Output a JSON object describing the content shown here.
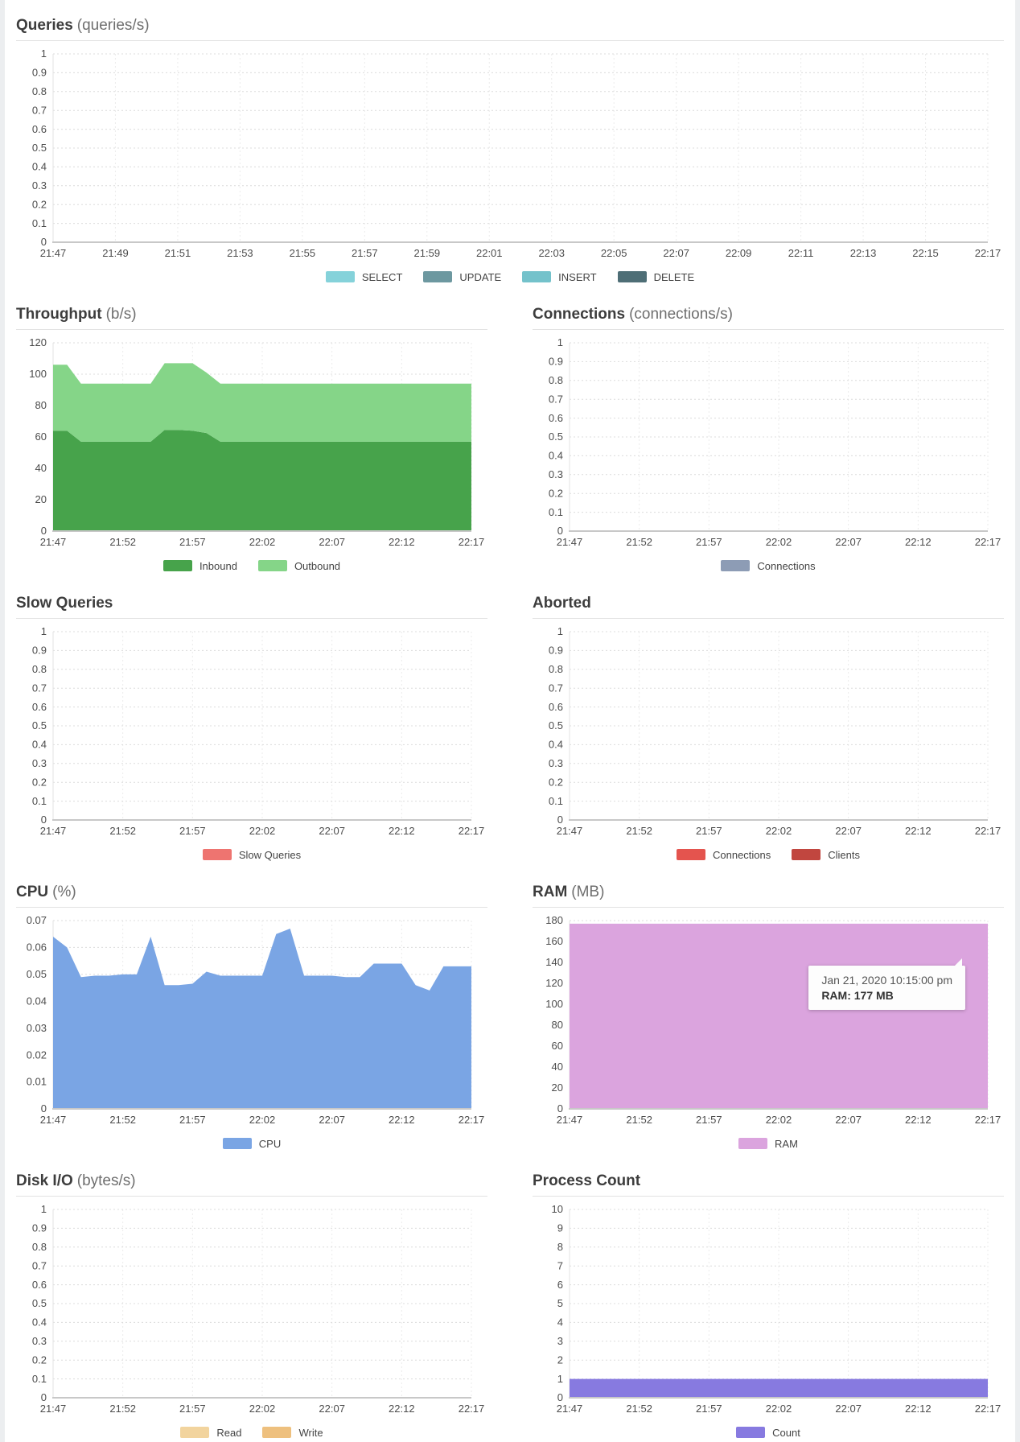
{
  "chart_data": [
    {
      "title": "Queries",
      "unit": "(queries/s)",
      "type": "line",
      "x_ticks": [
        "21:47",
        "21:49",
        "21:51",
        "21:53",
        "21:55",
        "21:57",
        "21:59",
        "22:01",
        "22:03",
        "22:05",
        "22:07",
        "22:09",
        "22:11",
        "22:13",
        "22:15",
        "22:17"
      ],
      "y_ticks_top_to_bottom": [
        "1",
        "0.9",
        "0.8",
        "0.7",
        "0.6",
        "0.5",
        "0.4",
        "0.3",
        "0.2",
        "0.1",
        "0"
      ],
      "y_min": 0,
      "y_max": 1,
      "grid": true,
      "legend_position": "bottom",
      "series": [
        {
          "name": "SELECT",
          "color": "#85d2da",
          "values": []
        },
        {
          "name": "UPDATE",
          "color": "#6d98a0",
          "values": []
        },
        {
          "name": "INSERT",
          "color": "#74c2cb",
          "values": []
        },
        {
          "name": "DELETE",
          "color": "#4e6e76",
          "values": []
        }
      ]
    },
    {
      "title": "Throughput",
      "unit": "(b/s)",
      "type": "stacked-area",
      "x_ticks": [
        "21:47",
        "21:52",
        "21:57",
        "22:02",
        "22:07",
        "22:12",
        "22:17"
      ],
      "y_ticks_top_to_bottom": [
        "120",
        "100",
        "80",
        "60",
        "40",
        "20",
        "0"
      ],
      "y_min": 0,
      "y_max": 120,
      "grid": true,
      "legend_position": "bottom",
      "points_interval_min": 1,
      "series": [
        {
          "name": "Inbound",
          "color": "#47a34b",
          "values": [
            64,
            64,
            57,
            57,
            57,
            57,
            57,
            57,
            64.5,
            64.5,
            64,
            62.5,
            57,
            57,
            57,
            57,
            57,
            57,
            57,
            57,
            57,
            57,
            57,
            57,
            57,
            57,
            57,
            57,
            57,
            57,
            57
          ]
        },
        {
          "name": "Outbound",
          "color": "#85d588",
          "values": [
            42,
            42,
            37,
            37,
            37,
            37,
            37,
            37,
            42.5,
            42.5,
            43,
            38.5,
            37,
            37,
            37,
            37,
            37,
            37,
            37,
            37,
            37,
            37,
            37,
            37,
            37,
            37,
            37,
            37,
            37,
            37,
            37
          ]
        }
      ]
    },
    {
      "title": "Connections",
      "unit": "(connections/s)",
      "type": "line",
      "x_ticks": [
        "21:47",
        "21:52",
        "21:57",
        "22:02",
        "22:07",
        "22:12",
        "22:17"
      ],
      "y_ticks_top_to_bottom": [
        "1",
        "0.9",
        "0.8",
        "0.7",
        "0.6",
        "0.5",
        "0.4",
        "0.3",
        "0.2",
        "0.1",
        "0"
      ],
      "y_min": 0,
      "y_max": 1,
      "grid": true,
      "legend_position": "bottom",
      "series": [
        {
          "name": "Connections",
          "color": "#8d9cb5",
          "values": []
        }
      ]
    },
    {
      "title": "Slow Queries",
      "unit": "",
      "type": "line",
      "x_ticks": [
        "21:47",
        "21:52",
        "21:57",
        "22:02",
        "22:07",
        "22:12",
        "22:17"
      ],
      "y_ticks_top_to_bottom": [
        "1",
        "0.9",
        "0.8",
        "0.7",
        "0.6",
        "0.5",
        "0.4",
        "0.3",
        "0.2",
        "0.1",
        "0"
      ],
      "y_min": 0,
      "y_max": 1,
      "grid": true,
      "legend_position": "bottom",
      "series": [
        {
          "name": "Slow Queries",
          "color": "#ee7470",
          "values": []
        }
      ]
    },
    {
      "title": "Aborted",
      "unit": "",
      "type": "line",
      "x_ticks": [
        "21:47",
        "21:52",
        "21:57",
        "22:02",
        "22:07",
        "22:12",
        "22:17"
      ],
      "y_ticks_top_to_bottom": [
        "1",
        "0.9",
        "0.8",
        "0.7",
        "0.6",
        "0.5",
        "0.4",
        "0.3",
        "0.2",
        "0.1",
        "0"
      ],
      "y_min": 0,
      "y_max": 1,
      "grid": true,
      "legend_position": "bottom",
      "series": [
        {
          "name": "Connections",
          "color": "#e4544e",
          "values": []
        },
        {
          "name": "Clients",
          "color": "#c1463f",
          "values": []
        }
      ]
    },
    {
      "title": "CPU",
      "unit": "(%)",
      "type": "area",
      "x_ticks": [
        "21:47",
        "21:52",
        "21:57",
        "22:02",
        "22:07",
        "22:12",
        "22:17"
      ],
      "y_ticks_top_to_bottom": [
        "0.07",
        "0.06",
        "0.05",
        "0.04",
        "0.03",
        "0.02",
        "0.01",
        "0"
      ],
      "y_min": 0,
      "y_max": 0.07,
      "grid": true,
      "legend_position": "bottom",
      "points_interval_min": 1,
      "series": [
        {
          "name": "CPU",
          "color": "#7aa5e4",
          "values": [
            0.064,
            0.06,
            0.049,
            0.0495,
            0.0495,
            0.05,
            0.05,
            0.064,
            0.046,
            0.046,
            0.0465,
            0.051,
            0.0495,
            0.0495,
            0.0495,
            0.0495,
            0.065,
            0.067,
            0.0495,
            0.0495,
            0.0495,
            0.049,
            0.049,
            0.054,
            0.054,
            0.054,
            0.046,
            0.044,
            0.053,
            0.053,
            0.053
          ]
        }
      ]
    },
    {
      "title": "RAM",
      "unit": "(MB)",
      "type": "area",
      "x_ticks": [
        "21:47",
        "21:52",
        "21:57",
        "22:02",
        "22:07",
        "22:12",
        "22:17"
      ],
      "y_ticks_top_to_bottom": [
        "180",
        "160",
        "140",
        "120",
        "100",
        "80",
        "60",
        "40",
        "20",
        "0"
      ],
      "y_min": 0,
      "y_max": 180,
      "grid": true,
      "legend_position": "bottom",
      "points_interval_min": 1,
      "tooltip": {
        "line1": "Jan 21, 2020 10:15:00 pm",
        "line2": "RAM: 177 MB"
      },
      "series": [
        {
          "name": "RAM",
          "color": "#dba4de",
          "values": [
            177,
            177,
            177,
            177,
            177,
            177,
            177,
            177,
            177,
            177,
            177,
            177,
            177,
            177,
            177,
            177,
            177,
            177,
            177,
            177,
            177,
            177,
            177,
            177,
            177,
            177,
            177,
            177,
            177,
            177,
            177
          ]
        }
      ]
    },
    {
      "title": "Disk I/O",
      "unit": "(bytes/s)",
      "type": "line",
      "x_ticks": [
        "21:47",
        "21:52",
        "21:57",
        "22:02",
        "22:07",
        "22:12",
        "22:17"
      ],
      "y_ticks_top_to_bottom": [
        "1",
        "0.9",
        "0.8",
        "0.7",
        "0.6",
        "0.5",
        "0.4",
        "0.3",
        "0.2",
        "0.1",
        "0"
      ],
      "y_min": 0,
      "y_max": 1,
      "grid": true,
      "legend_position": "bottom",
      "series": [
        {
          "name": "Read",
          "color": "#f2d49e",
          "values": []
        },
        {
          "name": "Write",
          "color": "#eec07e",
          "values": []
        }
      ]
    },
    {
      "title": "Process Count",
      "unit": "",
      "type": "area",
      "x_ticks": [
        "21:47",
        "21:52",
        "21:57",
        "22:02",
        "22:07",
        "22:12",
        "22:17"
      ],
      "y_ticks_top_to_bottom": [
        "10",
        "9",
        "8",
        "7",
        "6",
        "5",
        "4",
        "3",
        "2",
        "1",
        "0"
      ],
      "y_min": 0,
      "y_max": 10,
      "grid": true,
      "legend_position": "bottom",
      "points_interval_min": 1,
      "series": [
        {
          "name": "Count",
          "color": "#877ae0",
          "values": [
            1,
            1,
            1,
            1,
            1,
            1,
            1,
            1,
            1,
            1,
            1,
            1,
            1,
            1,
            1,
            1,
            1,
            1,
            1,
            1,
            1,
            1,
            1,
            1,
            1,
            1,
            1,
            1,
            1,
            1,
            1
          ]
        }
      ]
    }
  ]
}
